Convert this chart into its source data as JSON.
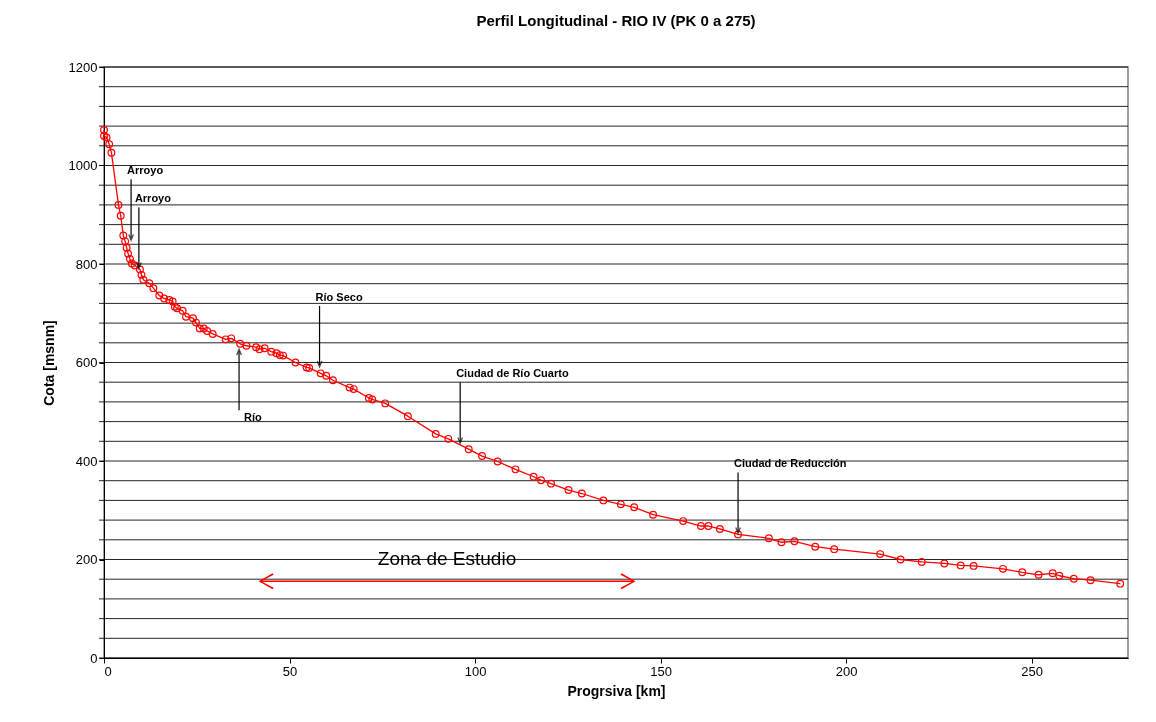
{
  "chart_data": {
    "type": "line",
    "title": "Perfil Longitudinal - RIO IV  (PK 0 a 275)",
    "xlabel": "Progrsiva [km]",
    "ylabel": "Cota [msnm]",
    "xlim": [
      0,
      276
    ],
    "xticks": [
      0,
      50,
      100,
      150,
      200,
      250
    ],
    "ylim": [
      0,
      1200
    ],
    "yticks": [
      0,
      {
        "value": 40,
        "label": null
      },
      {
        "value": 80,
        "label": null
      },
      {
        "value": 120,
        "label": null
      },
      {
        "value": 160,
        "label": null
      },
      200,
      {
        "value": 240,
        "label": null
      },
      {
        "value": 280,
        "label": null
      },
      {
        "value": 320,
        "label": null
      },
      {
        "value": 360,
        "label": null
      },
      400,
      {
        "value": 440,
        "label": null
      },
      {
        "value": 480,
        "label": null
      },
      {
        "value": 520,
        "label": null
      },
      {
        "value": 560,
        "label": null
      },
      600,
      {
        "value": 640,
        "label": null
      },
      {
        "value": 680,
        "label": null
      },
      {
        "value": 720,
        "label": null
      },
      {
        "value": 760,
        "label": null
      },
      800,
      {
        "value": 840,
        "label": null
      },
      {
        "value": 880,
        "label": null
      },
      {
        "value": 920,
        "label": null
      },
      {
        "value": 960,
        "label": null
      },
      1000,
      {
        "value": 1040,
        "label": null
      },
      {
        "value": 1080,
        "label": null
      },
      {
        "value": 1120,
        "label": null
      },
      {
        "value": 1160,
        "label": null
      },
      1200
    ],
    "grid": "y",
    "marker": "circle",
    "line_style": "solid",
    "series": [
      {
        "color": "#ff0000",
        "x": [
          0,
          0,
          0.7,
          1.4,
          2,
          3.9,
          4.5,
          5.2,
          5.7,
          6.1,
          6.5,
          7,
          7.5,
          8.3,
          9.7,
          10.1,
          10.6,
          12.2,
          13.3,
          14.9,
          16.2,
          17.6,
          18.5,
          19.1,
          19.7,
          21.2,
          22.1,
          24,
          24.8,
          25.8,
          26.9,
          27.8,
          29.3,
          32.8,
          34.3,
          36.7,
          38.4,
          41,
          41.9,
          43.3,
          45.1,
          46.5,
          47.4,
          48.3,
          51.6,
          54.6,
          55.3,
          58.4,
          59.9,
          61.7,
          66.2,
          67.3,
          71.4,
          72.3,
          75.8,
          81.9,
          89.4,
          92.8,
          98.3,
          101.9,
          106.1,
          110.9,
          115.8,
          117.8,
          120.5,
          125.2,
          128.8,
          134.6,
          139.3,
          142.9,
          148,
          156.1,
          160.9,
          162.9,
          166,
          170.9,
          179.2,
          182.6,
          186.1,
          191.7,
          196.8,
          209.2,
          214.7,
          220.4,
          226.5,
          230.9,
          234.4,
          242.3,
          247.5,
          251.9,
          255.7,
          257.5,
          261.4,
          265.9,
          273.9
        ],
        "values": [
          1072,
          1060,
          1057,
          1043,
          1026,
          920,
          898,
          858,
          846,
          833,
          821,
          810,
          801,
          797,
          789,
          778,
          768,
          761,
          751,
          736,
          730,
          727,
          724,
          713,
          710,
          705,
          693,
          690,
          681,
          669,
          669,
          664,
          658,
          647,
          649,
          638,
          634,
          631,
          627,
          629,
          622,
          619,
          615,
          614,
          600,
          590,
          589,
          578,
          573,
          564,
          549,
          546,
          528,
          525,
          517,
          491,
          455,
          445,
          424,
          410,
          399,
          383,
          368,
          361,
          354,
          341,
          334,
          320,
          312,
          306,
          291,
          278,
          268,
          268,
          262,
          251,
          243,
          235,
          237,
          226,
          221,
          211,
          200,
          195,
          192,
          188,
          187,
          181,
          174,
          169,
          172,
          167,
          161,
          158,
          151
        ]
      }
    ],
    "annotations": [
      {
        "text": "Arroyo",
        "x": 7.3,
        "y": 846
      },
      {
        "text": "Arroyo",
        "x": 9.4,
        "y": 789
      },
      {
        "text": "Río Seco",
        "x": 58.1,
        "y": 589
      },
      {
        "text": "Río",
        "x": 36.4,
        "y": 629
      },
      {
        "text": "Ciudad de Río Cuarto",
        "x": 96,
        "y": 434
      },
      {
        "text": "Ciudad de Reducción",
        "x": 170.9,
        "y": 251
      },
      "Zona de Estudio"
    ]
  }
}
